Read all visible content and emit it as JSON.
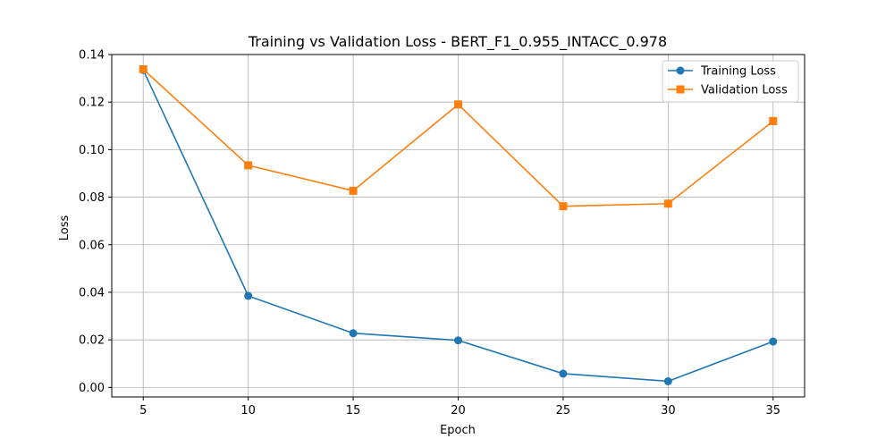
{
  "chart_data": {
    "type": "line",
    "title": "Training vs Validation Loss - BERT_F1_0.955_INTACC_0.978",
    "xlabel": "Epoch",
    "ylabel": "Loss",
    "x": [
      5,
      10,
      15,
      20,
      25,
      30,
      35
    ],
    "xlim": [
      3.5,
      36.5
    ],
    "ylim": [
      -0.004,
      0.14
    ],
    "xticks": [
      5,
      10,
      15,
      20,
      25,
      30,
      35
    ],
    "yticks": [
      0.0,
      0.02,
      0.04,
      0.06,
      0.08,
      0.1,
      0.12,
      0.14
    ],
    "ytick_labels": [
      "0.00",
      "0.02",
      "0.04",
      "0.06",
      "0.08",
      "0.10",
      "0.12",
      "0.14"
    ],
    "grid": true,
    "legend_position": "top-right",
    "series": [
      {
        "name": "Training Loss",
        "marker": "circle",
        "color": "#1f77b4",
        "values": [
          0.1335,
          0.0385,
          0.0228,
          0.0198,
          0.0058,
          0.0026,
          0.0193
        ]
      },
      {
        "name": "Validation Loss",
        "marker": "square",
        "color": "#ff7f0e",
        "values": [
          0.1338,
          0.0934,
          0.0827,
          0.119,
          0.0762,
          0.0773,
          0.112
        ]
      }
    ]
  }
}
